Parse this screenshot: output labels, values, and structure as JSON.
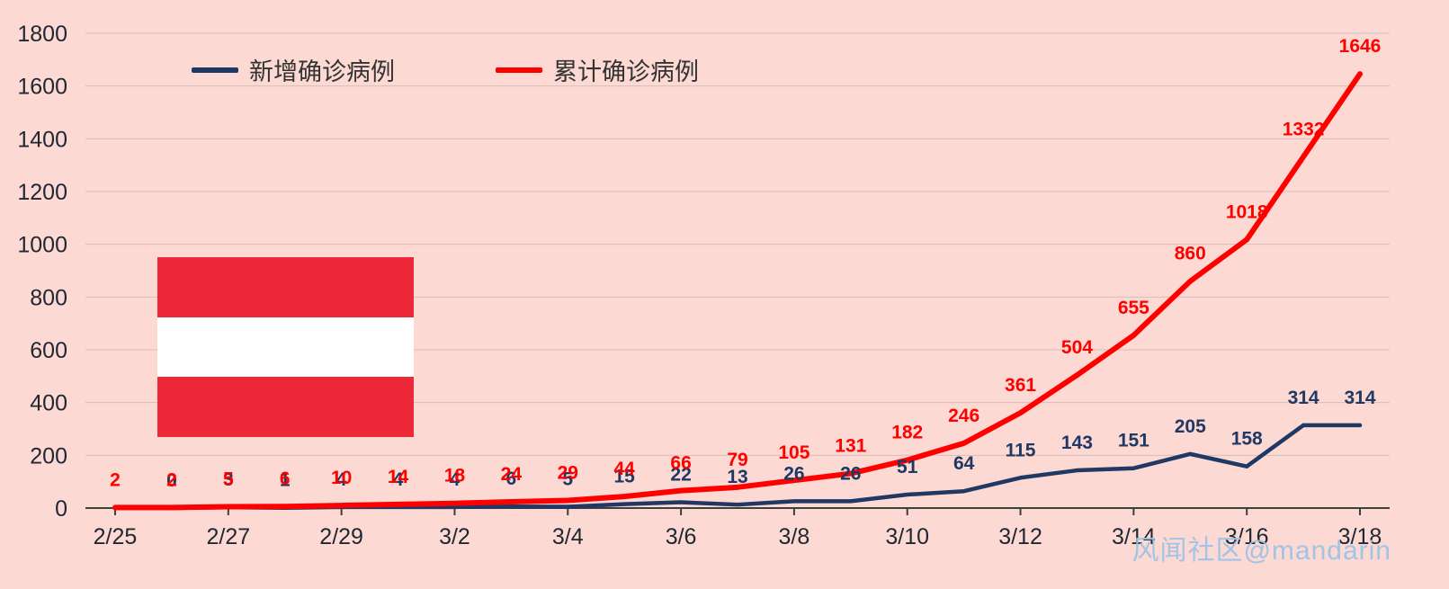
{
  "page": {
    "background": "#fcd9d2"
  },
  "legend": {
    "items": [
      {
        "label": "新增确诊病例",
        "color": "#1f3864"
      },
      {
        "label": "累计确诊病例",
        "color": "#ff0000"
      }
    ]
  },
  "flag": {
    "country": "austria",
    "stripe_colors": [
      "#ed2939",
      "#ffffff",
      "#ed2939"
    ]
  },
  "watermark": {
    "text": "风闻社区@mandarin",
    "color": "#9dc3e6"
  },
  "chart_data": {
    "type": "line",
    "title": "",
    "categories": [
      "2/25",
      "2/26",
      "2/27",
      "2/28",
      "2/29",
      "3/1",
      "3/2",
      "3/3",
      "3/4",
      "3/5",
      "3/6",
      "3/7",
      "3/8",
      "3/9",
      "3/10",
      "3/11",
      "3/12",
      "3/13",
      "3/14",
      "3/15",
      "3/16",
      "3/17",
      "3/18"
    ],
    "x_tick_every": 2,
    "x_tick_labels": [
      "2/25",
      "2/27",
      "2/29",
      "3/2",
      "3/4",
      "3/6",
      "3/8",
      "3/10",
      "3/12",
      "3/14",
      "3/16",
      "3/18"
    ],
    "series": [
      {
        "name": "新增确诊病例",
        "color": "#1f3864",
        "values": [
          null,
          0,
          3,
          1,
          4,
          4,
          4,
          6,
          5,
          15,
          22,
          13,
          26,
          26,
          51,
          64,
          115,
          143,
          151,
          205,
          158,
          314,
          314
        ]
      },
      {
        "name": "累计确诊病例",
        "color": "#ff0000",
        "values": [
          2,
          2,
          5,
          6,
          10,
          14,
          18,
          24,
          29,
          44,
          66,
          79,
          105,
          131,
          182,
          246,
          361,
          504,
          655,
          860,
          1018,
          1332,
          1646
        ]
      }
    ],
    "ylim": [
      0,
      1800
    ],
    "ytick_step": 200,
    "grid": true,
    "legend_position": "top",
    "data_labels": true
  }
}
